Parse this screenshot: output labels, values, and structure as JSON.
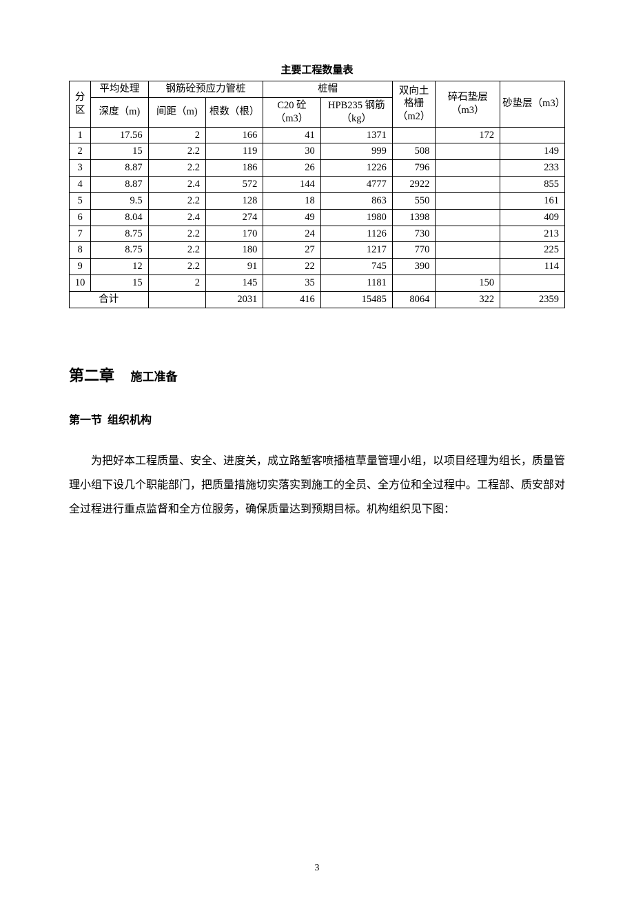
{
  "table": {
    "title": "主要工程数量表",
    "headers": {
      "zone": "分区",
      "depth_group": "平均处理",
      "depth_sub": "深度（m)",
      "pile_group": "钢筋砼预应力管桩",
      "pile_spacing": "间距（m)",
      "pile_count": "根数（根）",
      "cap_group": "桩帽",
      "cap_c20": "C20 砼（m3）",
      "cap_hpb": "HPB235 钢筋（kg）",
      "grid": "双向土格栅（m2）",
      "gravel": "碎石垫层（m3）",
      "sand": "砂垫层（m3）"
    },
    "rows": [
      {
        "zone": "1",
        "depth": "17.56",
        "spacing": "2",
        "count": "166",
        "c20": "41",
        "hpb": "1371",
        "grid": "",
        "gravel": "172",
        "sand": ""
      },
      {
        "zone": "2",
        "depth": "15",
        "spacing": "2.2",
        "count": "119",
        "c20": "30",
        "hpb": "999",
        "grid": "508",
        "gravel": "",
        "sand": "149"
      },
      {
        "zone": "3",
        "depth": "8.87",
        "spacing": "2.2",
        "count": "186",
        "c20": "26",
        "hpb": "1226",
        "grid": "796",
        "gravel": "",
        "sand": "233"
      },
      {
        "zone": "4",
        "depth": "8.87",
        "spacing": "2.4",
        "count": "572",
        "c20": "144",
        "hpb": "4777",
        "grid": "2922",
        "gravel": "",
        "sand": "855"
      },
      {
        "zone": "5",
        "depth": "9.5",
        "spacing": "2.2",
        "count": "128",
        "c20": "18",
        "hpb": "863",
        "grid": "550",
        "gravel": "",
        "sand": "161"
      },
      {
        "zone": "6",
        "depth": "8.04",
        "spacing": "2.4",
        "count": "274",
        "c20": "49",
        "hpb": "1980",
        "grid": "1398",
        "gravel": "",
        "sand": "409"
      },
      {
        "zone": "7",
        "depth": "8.75",
        "spacing": "2.2",
        "count": "170",
        "c20": "24",
        "hpb": "1126",
        "grid": "730",
        "gravel": "",
        "sand": "213"
      },
      {
        "zone": "8",
        "depth": "8.75",
        "spacing": "2.2",
        "count": "180",
        "c20": "27",
        "hpb": "1217",
        "grid": "770",
        "gravel": "",
        "sand": "225"
      },
      {
        "zone": "9",
        "depth": "12",
        "spacing": "2.2",
        "count": "91",
        "c20": "22",
        "hpb": "745",
        "grid": "390",
        "gravel": "",
        "sand": "114"
      },
      {
        "zone": "10",
        "depth": "15",
        "spacing": "2",
        "count": "145",
        "c20": "35",
        "hpb": "1181",
        "grid": "",
        "gravel": "150",
        "sand": ""
      }
    ],
    "total_label": "合计",
    "totals": {
      "spacing": "",
      "count": "2031",
      "c20": "416",
      "hpb": "15485",
      "grid": "8064",
      "gravel": "322",
      "sand": "2359"
    }
  },
  "chapter": {
    "number": "第二章",
    "title": "施工准备"
  },
  "section": {
    "number": "第一节",
    "title": "组织机构"
  },
  "paragraph": "为把好本工程质量、安全、进度关，成立路堑客喷播植草量管理小组，以项目经理为组长，质量管理小组下设几个职能部门，把质量措施切实落实到施工的全员、全方位和全过程中。工程部、质安部对全过程进行重点监督和全方位服务，确保质量达到预期目标。机构组织见下图：",
  "page_number": "3"
}
